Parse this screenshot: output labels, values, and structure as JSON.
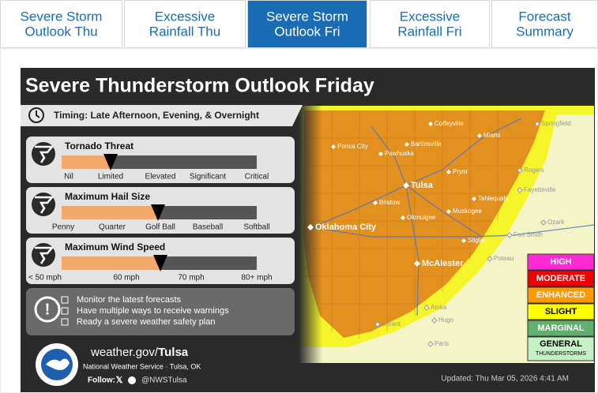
{
  "tabs": [
    {
      "lines": [
        "Severe Storm",
        "Outlook Thu"
      ],
      "active": false
    },
    {
      "lines": [
        "Excessive",
        "Rainfall Thu"
      ],
      "active": false
    },
    {
      "lines": [
        "Severe Storm",
        "Outlook Fri"
      ],
      "active": true
    },
    {
      "lines": [
        "Excessive",
        "Rainfall Fri"
      ],
      "active": false
    },
    {
      "lines": [
        "Forecast",
        "Summary"
      ],
      "active": false
    }
  ],
  "graphic": {
    "title": "Severe Thunderstorm Outlook Friday",
    "timing": "Timing:  Late Afternoon, Evening, & Overnight",
    "threats": [
      {
        "title": "Tornado Threat",
        "scale": [
          "Nil",
          "Limited",
          "Elevated",
          "Significant",
          "Critical"
        ]
      },
      {
        "title": "Maximum Hail Size",
        "scale": [
          "Penny",
          "Quarter",
          "Golf Ball",
          "Baseball",
          "Softball"
        ]
      },
      {
        "title": "Maximum Wind Speed",
        "scale": [
          "< 50 mph",
          "60 mph",
          "70 mph",
          "80+ mph"
        ]
      }
    ],
    "notes": [
      "Monitor the latest forecasts",
      "Have multiple ways to receive warnings",
      "Ready a severe weather safety plan"
    ],
    "cities": [
      "Coffeyville",
      "Miami",
      "Springfield",
      "Ponca City",
      "Pawhuska",
      "Bartlesville",
      "Pryor",
      "Rogers",
      "Tulsa",
      "Fayetteville",
      "Bristow",
      "Tahlequah",
      "Oklahoma City",
      "Okmulgee",
      "Muskogee",
      "Fort Smith",
      "Ozark",
      "Stigler",
      "McAlester",
      "Poteau",
      "Atoka",
      "Hugo",
      "Durant",
      "Paris"
    ],
    "legend": [
      {
        "label": "HIGH",
        "color": "#ff2ad4"
      },
      {
        "label": "MODERATE",
        "color": "#ee0000"
      },
      {
        "label": "ENHANCED",
        "color": "#ff9900"
      },
      {
        "label": "SLIGHT",
        "color": "#ffff00"
      },
      {
        "label": "MARGINAL",
        "color": "#5fb06c"
      },
      {
        "label": "GENERAL",
        "sublabel": "THUNDERSTORMS",
        "color": "#c6f0c6"
      }
    ],
    "footer": {
      "site_prefix": "weather.gov/",
      "site_office": "Tulsa",
      "org": "National Weather Service · Tulsa, OK",
      "follow": "Follow:",
      "handle": "@NWSTulsa",
      "updated": "Updated: Thu Mar 05, 2026 4:41 AM"
    }
  }
}
